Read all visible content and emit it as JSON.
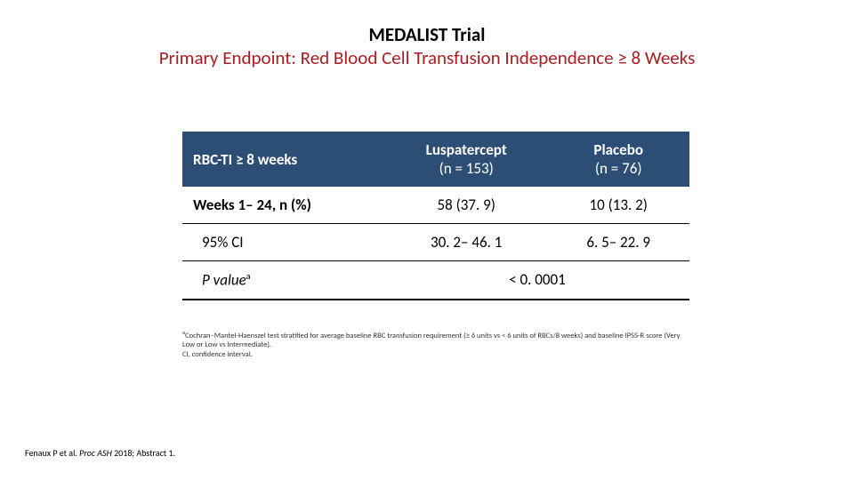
{
  "colors": {
    "header_bg": "#2c4e75",
    "header_fg": "#ffffff",
    "title_accent": "#aa1e22",
    "text": "#000000"
  },
  "title": {
    "line1": "MEDALIST Trial",
    "line2": "Primary Endpoint: Red Blood Cell Transfusion Independence ≥ 8 Weeks"
  },
  "table": {
    "type": "table",
    "font_size": 17,
    "columns": [
      {
        "label": "RBC-TI ≥ 8 weeks",
        "sub": "",
        "align": "left",
        "width_pct": 40
      },
      {
        "label": "Luspatercept",
        "sub": "(n = 153)",
        "align": "center",
        "width_pct": 32
      },
      {
        "label": "Placebo",
        "sub": "(n = 76)",
        "align": "center",
        "width_pct": 28
      }
    ],
    "rows": [
      {
        "label": "Weeks 1– 24, n (%)",
        "col2": "58 (37. 9)",
        "col3": "10 (13. 2)",
        "kind": "bold"
      },
      {
        "label": "95% CI",
        "col2": "30. 2– 46. 1",
        "col3": "6. 5– 22. 9",
        "kind": "ci"
      },
      {
        "label": "P value",
        "sup": "a",
        "merged": "< 0. 0001",
        "kind": "pval"
      }
    ]
  },
  "footnote": {
    "sup": "a",
    "text1": "Cochran–Mantel-Haenszel test stratified for average baseline RBC transfusion requirement (≥ 6 units vs < 6 units of RBCs/8 weeks) and baseline IPSS-R score (Very Low or Low vs Intermediate).",
    "text2": "CI, confidence interval."
  },
  "citation": {
    "prefix": "Fenaux P et al. ",
    "ital": "Proc ASH ",
    "suffix": "2018; Abstract 1."
  }
}
